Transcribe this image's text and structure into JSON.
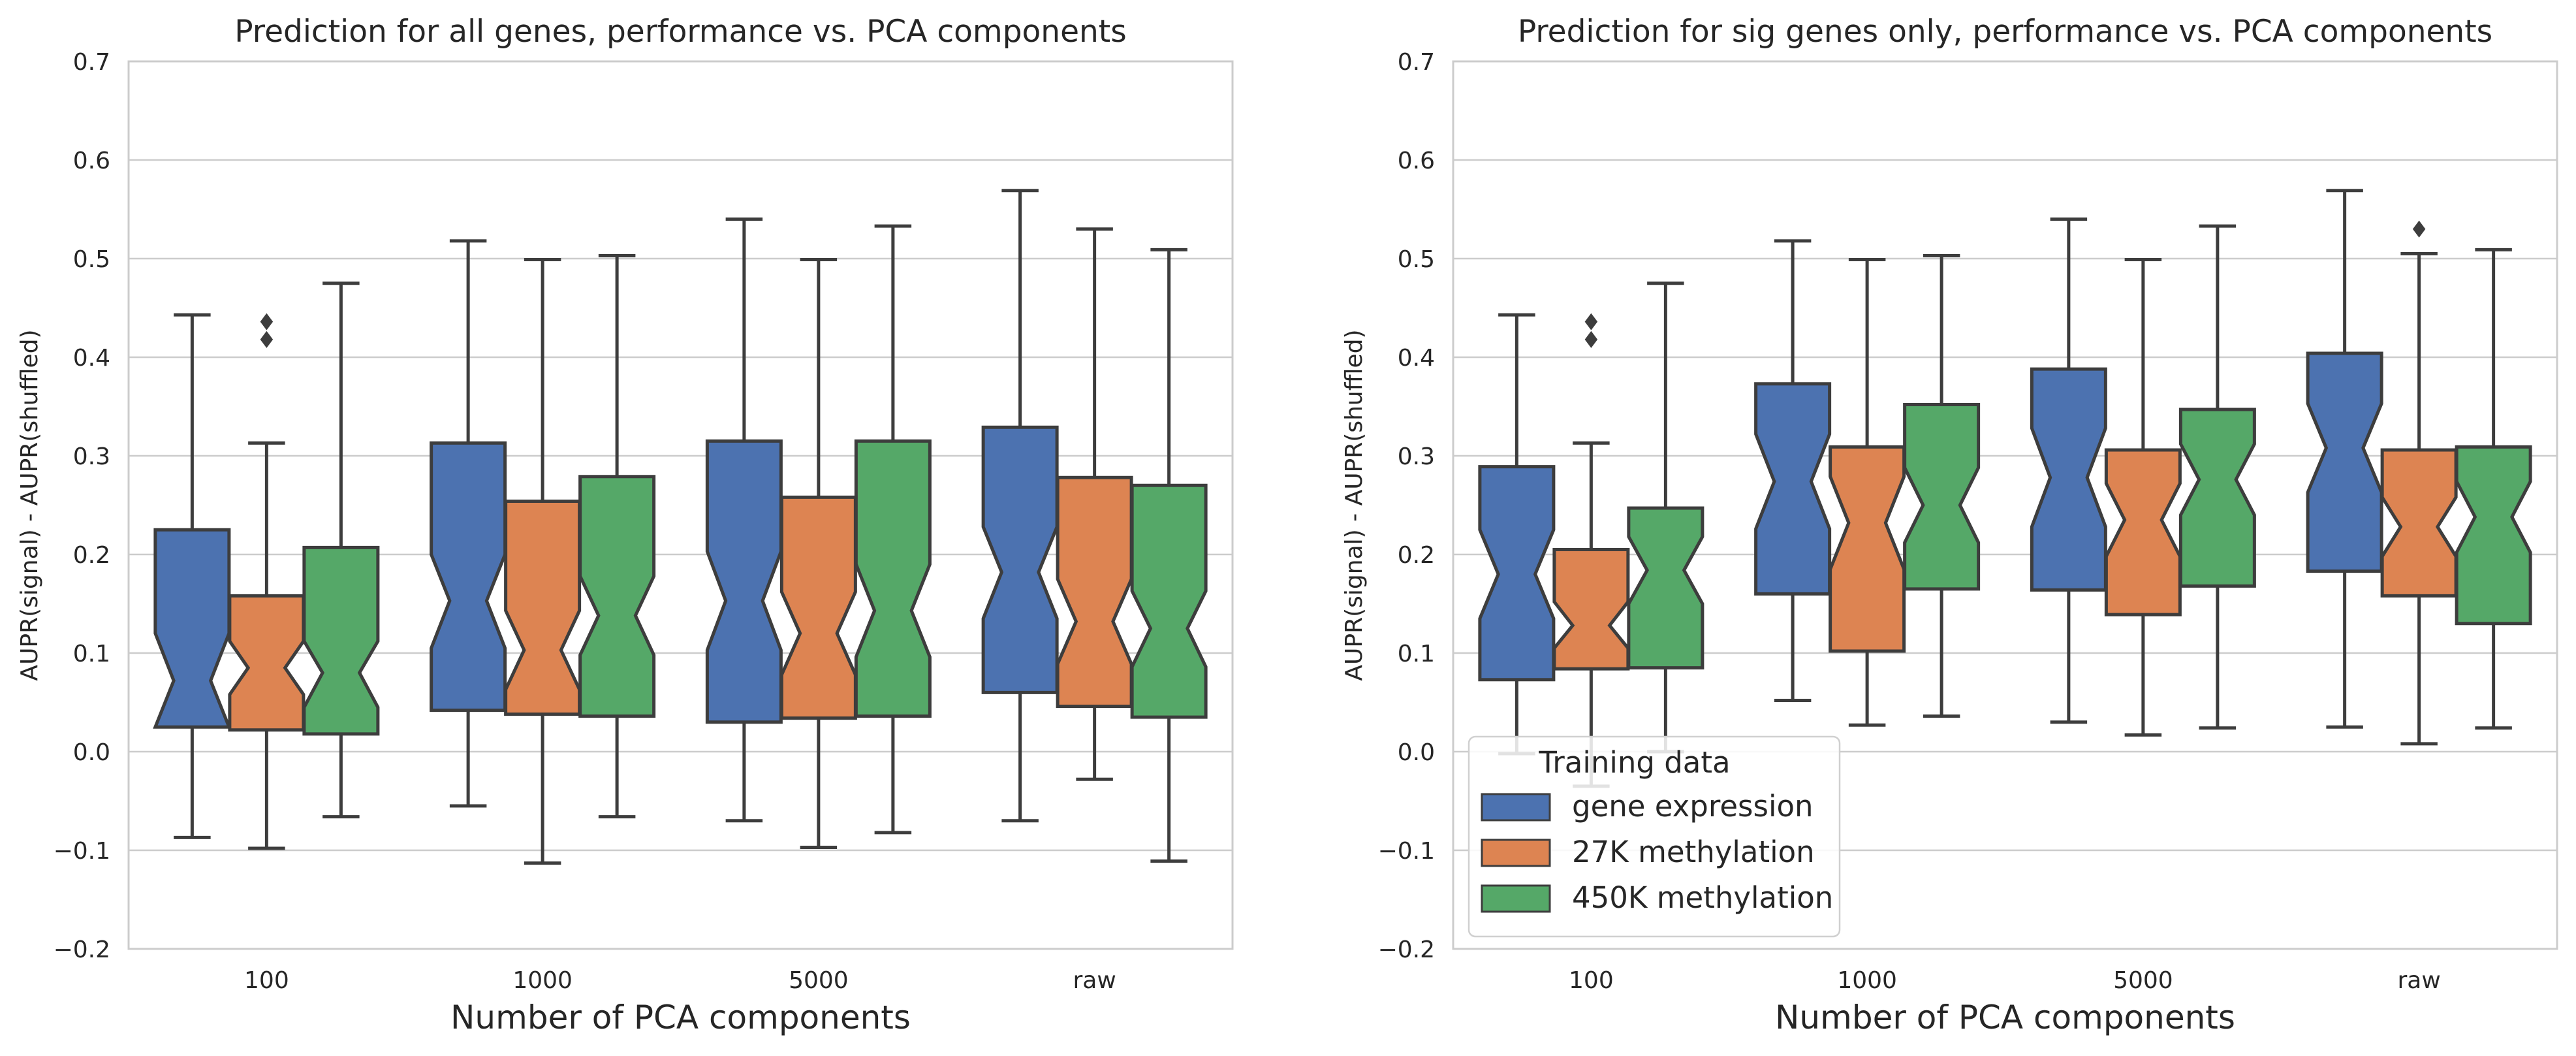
{
  "colors": {
    "gene_expression": "#4c72b0",
    "methylation_27k": "#dd8452",
    "methylation_450k": "#55a868",
    "box_edge": "#3d3d3d",
    "grid": "#cccccc",
    "spine": "#cccccc"
  },
  "chart_data": [
    {
      "type": "box",
      "notched": true,
      "title": "Prediction for all genes, performance vs. PCA components",
      "xlabel": "Number of PCA components",
      "ylabel": "AUPR(signal) - AUPR(shuffled)",
      "ylim": [
        -0.2,
        0.7
      ],
      "yticks": [
        "−0.2",
        "−0.1",
        "0.0",
        "0.1",
        "0.2",
        "0.3",
        "0.4",
        "0.5",
        "0.6",
        "0.7"
      ],
      "ytick_values": [
        -0.2,
        -0.1,
        0.0,
        0.1,
        0.2,
        0.3,
        0.4,
        0.5,
        0.6,
        0.7
      ],
      "grid": "horizontal",
      "categories": [
        "100",
        "1000",
        "5000",
        "raw"
      ],
      "series": [
        {
          "name": "gene expression",
          "boxes": [
            {
              "whisker_low": -0.087,
              "q1": 0.025,
              "median": 0.072,
              "q3": 0.225,
              "whisker_high": 0.443,
              "notch": [
                0.025,
                0.12
              ],
              "outliers": []
            },
            {
              "whisker_low": -0.055,
              "q1": 0.042,
              "median": 0.153,
              "q3": 0.313,
              "whisker_high": 0.518,
              "notch": [
                0.105,
                0.2
              ],
              "outliers": []
            },
            {
              "whisker_low": -0.07,
              "q1": 0.03,
              "median": 0.153,
              "q3": 0.315,
              "whisker_high": 0.54,
              "notch": [
                0.103,
                0.203
              ],
              "outliers": []
            },
            {
              "whisker_low": -0.07,
              "q1": 0.06,
              "median": 0.182,
              "q3": 0.329,
              "whisker_high": 0.569,
              "notch": [
                0.135,
                0.228
              ],
              "outliers": []
            }
          ]
        },
        {
          "name": "27K methylation",
          "boxes": [
            {
              "whisker_low": -0.098,
              "q1": 0.022,
              "median": 0.085,
              "q3": 0.158,
              "whisker_high": 0.313,
              "notch": [
                0.058,
                0.112
              ],
              "outliers": [
                0.418,
                0.436
              ]
            },
            {
              "whisker_low": -0.113,
              "q1": 0.038,
              "median": 0.103,
              "q3": 0.254,
              "whisker_high": 0.499,
              "notch": [
                0.063,
                0.143
              ],
              "outliers": []
            },
            {
              "whisker_low": -0.097,
              "q1": 0.034,
              "median": 0.12,
              "q3": 0.258,
              "whisker_high": 0.499,
              "notch": [
                0.078,
                0.162
              ],
              "outliers": []
            },
            {
              "whisker_low": -0.028,
              "q1": 0.046,
              "median": 0.132,
              "q3": 0.278,
              "whisker_high": 0.53,
              "notch": [
                0.089,
                0.175
              ],
              "outliers": []
            }
          ]
        },
        {
          "name": "450K methylation",
          "boxes": [
            {
              "whisker_low": -0.066,
              "q1": 0.018,
              "median": 0.08,
              "q3": 0.207,
              "whisker_high": 0.475,
              "notch": [
                0.045,
                0.112
              ],
              "outliers": []
            },
            {
              "whisker_low": -0.066,
              "q1": 0.036,
              "median": 0.138,
              "q3": 0.279,
              "whisker_high": 0.503,
              "notch": [
                0.098,
                0.178
              ],
              "outliers": []
            },
            {
              "whisker_low": -0.082,
              "q1": 0.036,
              "median": 0.143,
              "q3": 0.315,
              "whisker_high": 0.533,
              "notch": [
                0.096,
                0.19
              ],
              "outliers": []
            },
            {
              "whisker_low": -0.111,
              "q1": 0.035,
              "median": 0.125,
              "q3": 0.27,
              "whisker_high": 0.509,
              "notch": [
                0.086,
                0.163
              ],
              "outliers": []
            }
          ]
        }
      ]
    },
    {
      "type": "box",
      "notched": true,
      "title": "Prediction for sig genes only, performance vs. PCA components",
      "xlabel": "Number of PCA components",
      "ylabel": "AUPR(signal) - AUPR(shuffled)",
      "ylim": [
        -0.2,
        0.7
      ],
      "yticks": [
        "−0.2",
        "−0.1",
        "0.0",
        "0.1",
        "0.2",
        "0.3",
        "0.4",
        "0.5",
        "0.6",
        "0.7"
      ],
      "ytick_values": [
        -0.2,
        -0.1,
        0.0,
        0.1,
        0.2,
        0.3,
        0.4,
        0.5,
        0.6,
        0.7
      ],
      "grid": "horizontal",
      "categories": [
        "100",
        "1000",
        "5000",
        "raw"
      ],
      "legend": {
        "title": "Training data",
        "placement": "lower-left",
        "entries": [
          "gene expression",
          "27K methylation",
          "450K methylation"
        ]
      },
      "series": [
        {
          "name": "gene expression",
          "boxes": [
            {
              "whisker_low": -0.002,
              "q1": 0.073,
              "median": 0.18,
              "q3": 0.289,
              "whisker_high": 0.443,
              "notch": [
                0.135,
                0.225
              ],
              "outliers": []
            },
            {
              "whisker_low": 0.052,
              "q1": 0.16,
              "median": 0.274,
              "q3": 0.373,
              "whisker_high": 0.518,
              "notch": [
                0.226,
                0.322
              ],
              "outliers": []
            },
            {
              "whisker_low": 0.03,
              "q1": 0.164,
              "median": 0.278,
              "q3": 0.388,
              "whisker_high": 0.54,
              "notch": [
                0.228,
                0.328
              ],
              "outliers": []
            },
            {
              "whisker_low": 0.025,
              "q1": 0.183,
              "median": 0.308,
              "q3": 0.404,
              "whisker_high": 0.569,
              "notch": [
                0.263,
                0.353
              ],
              "outliers": []
            }
          ]
        },
        {
          "name": "27K methylation",
          "boxes": [
            {
              "whisker_low": -0.035,
              "q1": 0.084,
              "median": 0.128,
              "q3": 0.205,
              "whisker_high": 0.313,
              "notch": [
                0.105,
                0.152
              ],
              "outliers": [
                0.418,
                0.436
              ]
            },
            {
              "whisker_low": 0.027,
              "q1": 0.102,
              "median": 0.232,
              "q3": 0.309,
              "whisker_high": 0.499,
              "notch": [
                0.185,
                0.279
              ],
              "outliers": []
            },
            {
              "whisker_low": 0.017,
              "q1": 0.139,
              "median": 0.235,
              "q3": 0.306,
              "whisker_high": 0.499,
              "notch": [
                0.198,
                0.272
              ],
              "outliers": []
            },
            {
              "whisker_low": 0.008,
              "q1": 0.158,
              "median": 0.228,
              "q3": 0.306,
              "whisker_high": 0.505,
              "notch": [
                0.198,
                0.258
              ],
              "outliers": [
                0.53
              ]
            }
          ]
        },
        {
          "name": "450K methylation",
          "boxes": [
            {
              "whisker_low": 0.0,
              "q1": 0.085,
              "median": 0.184,
              "q3": 0.247,
              "whisker_high": 0.475,
              "notch": [
                0.15,
                0.218
              ],
              "outliers": []
            },
            {
              "whisker_low": 0.036,
              "q1": 0.165,
              "median": 0.25,
              "q3": 0.352,
              "whisker_high": 0.503,
              "notch": [
                0.212,
                0.288
              ],
              "outliers": []
            },
            {
              "whisker_low": 0.024,
              "q1": 0.168,
              "median": 0.276,
              "q3": 0.347,
              "whisker_high": 0.533,
              "notch": [
                0.24,
                0.312
              ],
              "outliers": []
            },
            {
              "whisker_low": 0.024,
              "q1": 0.13,
              "median": 0.238,
              "q3": 0.309,
              "whisker_high": 0.509,
              "notch": [
                0.202,
                0.274
              ],
              "outliers": []
            }
          ]
        }
      ]
    }
  ]
}
